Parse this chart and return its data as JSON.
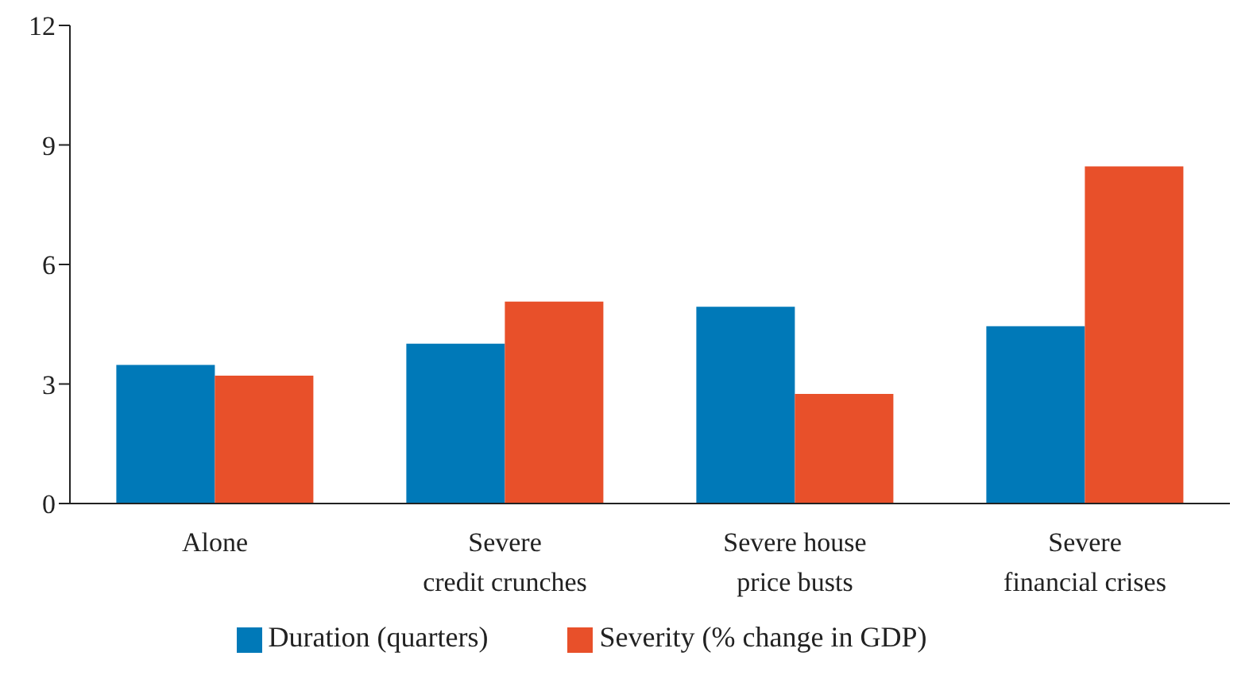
{
  "chart_data": {
    "type": "bar",
    "categories": [
      "Alone",
      "Severe\ncredit crunches",
      "Severe house\nprice busts",
      "Severe\nfinancial crises"
    ],
    "series": [
      {
        "name": "Duration (quarters)",
        "color": "#0079b8",
        "values": [
          3.48,
          4.01,
          4.94,
          4.45
        ]
      },
      {
        "name": "Severity (% change in GDP)",
        "color": "#e8502a",
        "values": [
          3.21,
          5.07,
          2.75,
          8.46
        ]
      }
    ],
    "ylim": [
      0,
      12
    ],
    "yticks": [
      0,
      3,
      6,
      9,
      12
    ],
    "grid": false,
    "legend": "bottom"
  }
}
